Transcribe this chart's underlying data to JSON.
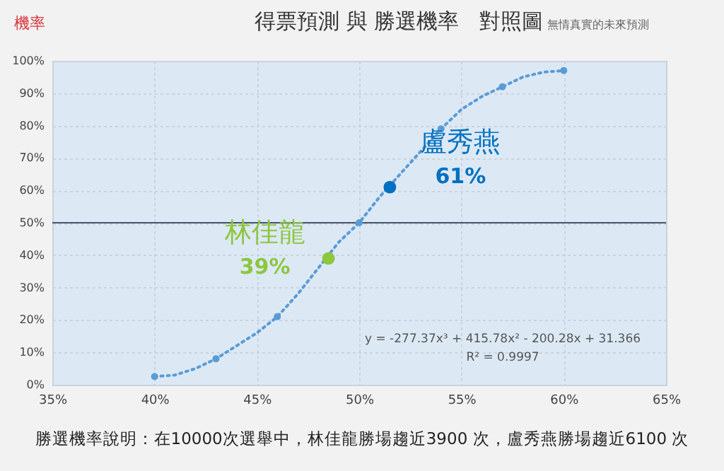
{
  "chart_data": {
    "type": "scatter",
    "title": "得票預測 與 勝選機率   對照圖",
    "subtitle": "無情真實的未來預測",
    "ylabel": "機率",
    "xlim": [
      35,
      65
    ],
    "ylim": [
      0,
      100
    ],
    "xticks": [
      {
        "value": 35,
        "label": "35%"
      },
      {
        "value": 40,
        "label": "40%"
      },
      {
        "value": 45,
        "label": "45%"
      },
      {
        "value": 50,
        "label": "50%"
      },
      {
        "value": 55,
        "label": "55%"
      },
      {
        "value": 60,
        "label": "60%"
      },
      {
        "value": 65,
        "label": "65%"
      }
    ],
    "yticks": [
      {
        "value": 0,
        "label": "0%"
      },
      {
        "value": 10,
        "label": "10%"
      },
      {
        "value": 20,
        "label": "20%"
      },
      {
        "value": 30,
        "label": "30%"
      },
      {
        "value": 40,
        "label": "40%"
      },
      {
        "value": 50,
        "label": "50%"
      },
      {
        "value": 60,
        "label": "60%"
      },
      {
        "value": 70,
        "label": "70%"
      },
      {
        "value": 80,
        "label": "80%"
      },
      {
        "value": 90,
        "label": "90%"
      },
      {
        "value": 100,
        "label": "100%"
      }
    ],
    "grid": true,
    "marker": "circle",
    "series": [
      {
        "type": "line",
        "marker": "none",
        "line_style": "dotted",
        "color": "#5b9bd5",
        "x": [
          40,
          41,
          42,
          43,
          44,
          45,
          46,
          47,
          48,
          49,
          50,
          51,
          52,
          53,
          54,
          55,
          56,
          57,
          58,
          59,
          60
        ],
        "values": [
          2.5,
          3,
          5,
          8,
          12,
          16,
          21,
          28,
          36,
          44,
          50,
          58,
          65,
          72,
          79,
          85,
          89,
          92,
          95,
          96.5,
          97
        ]
      },
      {
        "color": "#5b9bd5",
        "x": [
          40,
          43,
          46,
          50,
          54,
          57,
          60
        ],
        "values": [
          2.5,
          8,
          21,
          50,
          79,
          92,
          97
        ]
      },
      {
        "type": "scatter",
        "name": "林佳龍",
        "color": "#8dc63f",
        "x": [
          48.5
        ],
        "values": [
          39
        ],
        "value_labels": [
          "39%"
        ]
      },
      {
        "type": "scatter",
        "name": "盧秀燕",
        "color": "#0070c0",
        "x": [
          51.5
        ],
        "values": [
          61
        ],
        "value_labels": [
          "61%"
        ]
      }
    ],
    "ref_lines": [
      {
        "axis": "y",
        "value": 50,
        "color": "#44546a"
      }
    ],
    "annotations": [
      "y = -277.37x³ + 415.78x² - 200.28x + 31.366",
      "R² = 0.9997",
      "勝選機率說明：在10000次選舉中，林佳龍勝場趨近3900 次，盧秀燕勝場趨近6100 次"
    ]
  }
}
